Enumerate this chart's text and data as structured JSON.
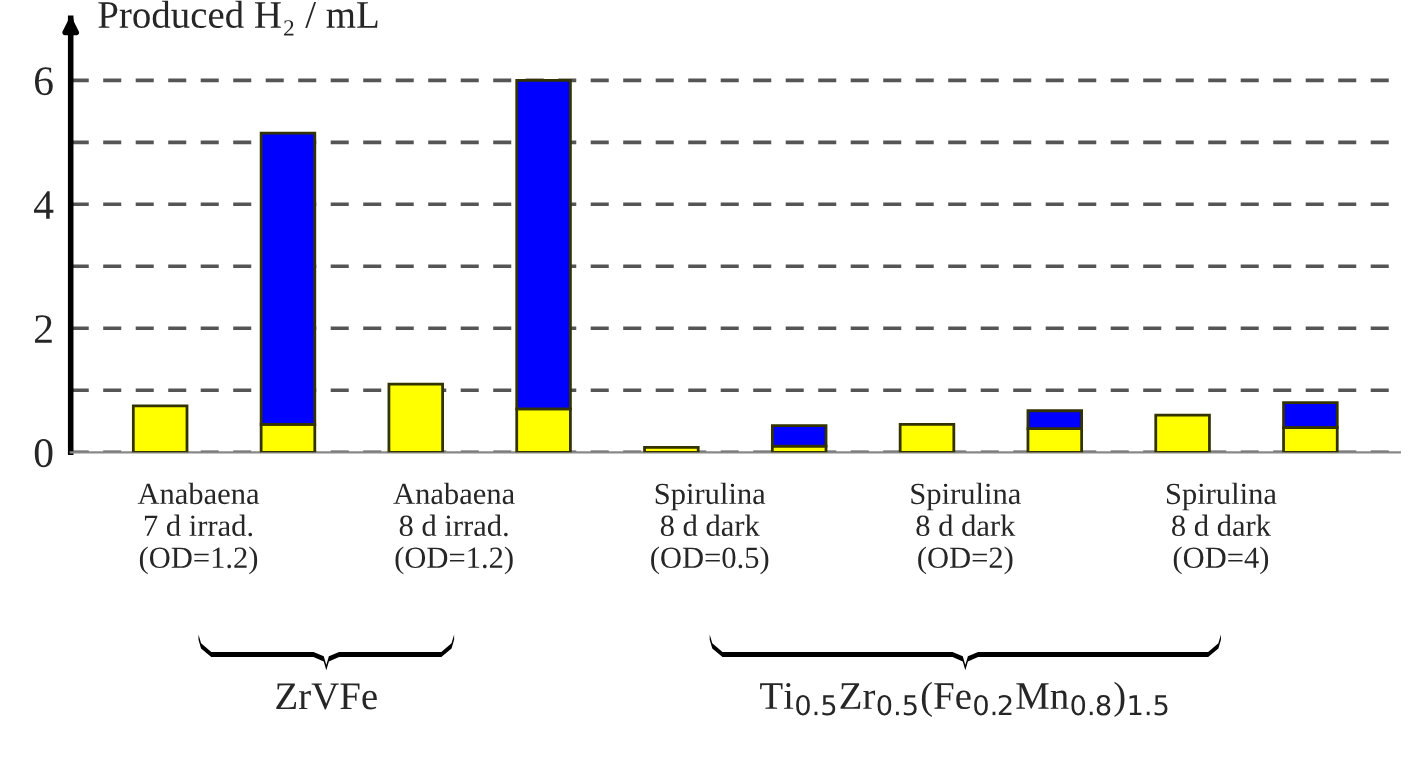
{
  "chart_data": {
    "type": "bar",
    "stacked": true,
    "ylabel": "Produced H₂ / mL",
    "categories": [
      null,
      null,
      null,
      null,
      null,
      null,
      null,
      null,
      null,
      null
    ],
    "series": [
      {
        "color": "#ffff00",
        "values": [
          0.75,
          0.45,
          1.1,
          0.7,
          0.08,
          0.1,
          0.45,
          0.38,
          0.6,
          0.4
        ]
      },
      {
        "color": "#0000ff",
        "values": [
          null,
          4.7,
          null,
          5.3,
          null,
          0.33,
          null,
          0.29,
          null,
          0.4
        ]
      }
    ],
    "ylim": [
      0,
      7
    ],
    "yticks": [
      0,
      {
        "value": 1,
        "label": null
      },
      2,
      {
        "value": 3,
        "label": null
      },
      4,
      {
        "value": 5,
        "label": null
      },
      6
    ],
    "grid": "y",
    "legend": false,
    "annotations": [
      "Anabaena\n7 d irrad.\n(OD=1.2)",
      "Anabaena\n8 d irrad.\n(OD=1.2)",
      "Spirulina\n8 d dark\n(OD=0.5)",
      "Spirulina\n8 d dark\n(OD=2)",
      "Spirulina\n8 d dark\n(OD=4)",
      "ZrVFe",
      "Ti$_{0.5}$Zr$_{0.5}$(Fe$_{0.2}$Mn$_{0.8}$)$_{1.5}$"
    ]
  }
}
